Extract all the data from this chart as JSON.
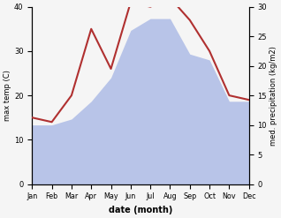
{
  "months": [
    "Jan",
    "Feb",
    "Mar",
    "Apr",
    "May",
    "Jun",
    "Jul",
    "Aug",
    "Sep",
    "Oct",
    "Nov",
    "Dec"
  ],
  "temperature": [
    15,
    14,
    20,
    35,
    26,
    41,
    40,
    42,
    37,
    30,
    20,
    19
  ],
  "precipitation": [
    10,
    10,
    11,
    14,
    18,
    26,
    28,
    28,
    22,
    21,
    14,
    14
  ],
  "temp_color": "#b03030",
  "precip_color": "#b8c4e8",
  "temp_ylim": [
    0,
    40
  ],
  "precip_ylim": [
    0,
    30
  ],
  "xlabel": "date (month)",
  "ylabel_left": "max temp (C)",
  "ylabel_right": "med. precipitation (kg/m2)",
  "bg_color": "#f5f5f5"
}
